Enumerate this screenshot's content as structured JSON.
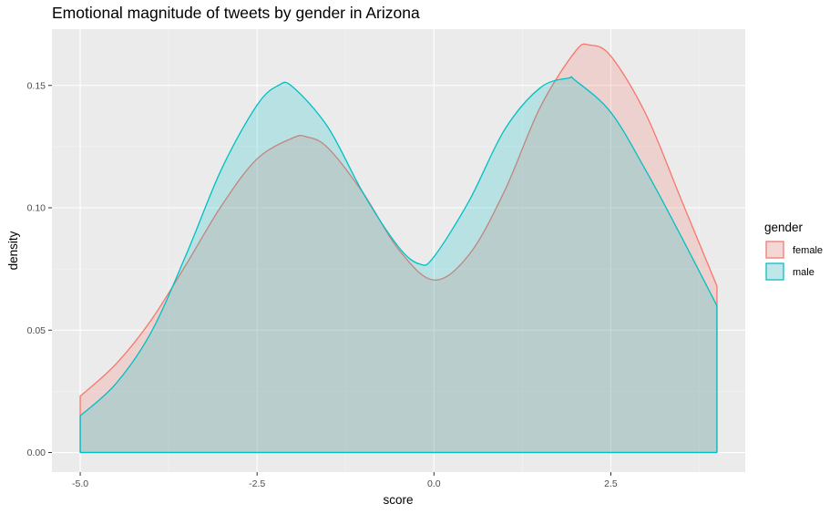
{
  "chart_data": {
    "type": "area",
    "title": "Emotional magnitude of tweets by gender in Arizona",
    "xlabel": "score",
    "ylabel": "density",
    "xlim": [
      -5.4,
      4.4
    ],
    "ylim": [
      -0.008,
      0.173
    ],
    "x_ticks": [
      -5.0,
      -2.5,
      0.0,
      2.5
    ],
    "x_tick_labels": [
      "-5.0",
      "-2.5",
      "0.0",
      "2.5"
    ],
    "y_ticks": [
      0.0,
      0.05,
      0.1,
      0.15
    ],
    "y_tick_labels": [
      "0.00",
      "0.05",
      "0.10",
      "0.15"
    ],
    "grid": true,
    "legend": {
      "title": "gender",
      "position": "right"
    },
    "series": [
      {
        "name": "female",
        "color": "#F8766D",
        "fill": "rgba(248,118,109,0.22)",
        "x": [
          -5.0,
          -4.5,
          -4.0,
          -3.5,
          -3.0,
          -2.5,
          -2.0,
          -1.8,
          -1.5,
          -1.0,
          -0.5,
          0.0,
          0.5,
          1.0,
          1.5,
          2.0,
          2.2,
          2.5,
          3.0,
          3.5,
          4.0
        ],
        "y": [
          0.023,
          0.036,
          0.054,
          0.077,
          0.101,
          0.12,
          0.1285,
          0.129,
          0.1245,
          0.106,
          0.083,
          0.0705,
          0.081,
          0.107,
          0.141,
          0.164,
          0.1665,
          0.162,
          0.138,
          0.103,
          0.068
        ]
      },
      {
        "name": "male",
        "color": "#00BFC4",
        "fill": "rgba(0,191,196,0.22)",
        "x": [
          -5.0,
          -4.5,
          -4.0,
          -3.5,
          -3.0,
          -2.5,
          -2.2,
          -2.0,
          -1.5,
          -1.0,
          -0.5,
          -0.2,
          0.0,
          0.5,
          1.0,
          1.5,
          1.9,
          2.0,
          2.5,
          3.0,
          3.5,
          4.0
        ],
        "y": [
          0.015,
          0.028,
          0.049,
          0.081,
          0.116,
          0.142,
          0.15,
          0.1495,
          0.133,
          0.106,
          0.084,
          0.077,
          0.08,
          0.103,
          0.132,
          0.149,
          0.153,
          0.152,
          0.139,
          0.115,
          0.088,
          0.06
        ]
      }
    ]
  }
}
